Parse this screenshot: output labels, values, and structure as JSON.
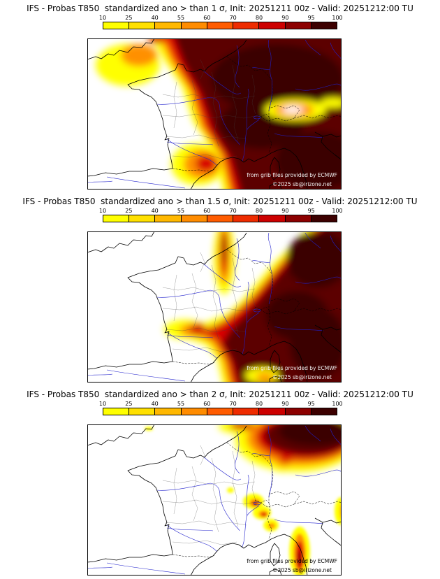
{
  "panels": [
    {
      "title": "IFS - Probas T850  standardized ano > than 1 σ, Init: 20251211 00z - Valid: 20251212:00 TU",
      "credit": "from grib files provided by ECMWF",
      "copyright": "©2025 sb@irizone.net",
      "credit_color": "#f2f2f2"
    },
    {
      "title": "IFS - Probas T850  standardized ano > than 1.5 σ, Init: 20251211 00z - Valid: 20251212:00 TU",
      "credit": "from grib files provided by ECMWF",
      "copyright": "©2025 sb@irizone.net",
      "credit_color": "#f2f2f2"
    },
    {
      "title": "IFS - Probas T850  standardized ano > than 2 σ, Init: 20251211 00z - Valid: 20251212:00 TU",
      "credit": "from grib files provided by ECMWF",
      "copyright": "©2025 sb@irizone.net",
      "credit_color": "#000000"
    }
  ],
  "colorbar": {
    "tick_labels": [
      "10",
      "25",
      "40",
      "55",
      "60",
      "70",
      "80",
      "90",
      "95",
      "100"
    ],
    "segment_colors": [
      "#ffff00",
      "#ffe000",
      "#ffb800",
      "#ff8c00",
      "#ff5c00",
      "#ee2c00",
      "#cc0000",
      "#8c0000",
      "#3c0000"
    ]
  },
  "map": {
    "sea_color": "#ffffff",
    "coastline_color": "#000000",
    "river_color": "#2020cc",
    "country_border_color": "#000000",
    "department_border_color": "#444444",
    "prob_colors": {
      "yellow": "#ffff00",
      "orange": "#ff9000",
      "red_orange": "#ff4800",
      "red": "#d80000",
      "dark_red": "#980000",
      "maroon": "#5c0000",
      "darkest": "#3a0000"
    }
  }
}
